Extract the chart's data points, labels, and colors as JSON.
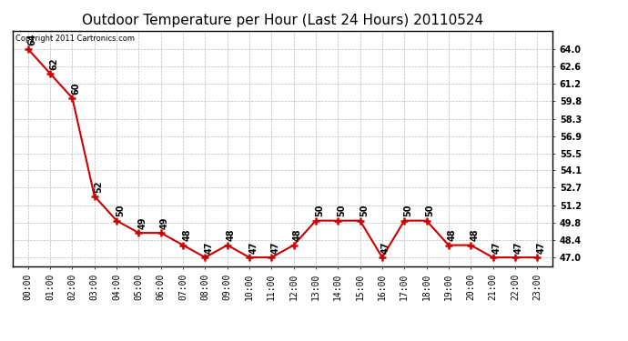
{
  "title": "Outdoor Temperature per Hour (Last 24 Hours) 20110524",
  "copyright_text": "Copyright 2011 Cartronics.com",
  "hours": [
    "00:00",
    "01:00",
    "02:00",
    "03:00",
    "04:00",
    "05:00",
    "06:00",
    "07:00",
    "08:00",
    "09:00",
    "10:00",
    "11:00",
    "12:00",
    "13:00",
    "14:00",
    "15:00",
    "16:00",
    "17:00",
    "18:00",
    "19:00",
    "20:00",
    "21:00",
    "22:00",
    "23:00"
  ],
  "temps": [
    64,
    62,
    60,
    52,
    50,
    49,
    49,
    48,
    47,
    48,
    47,
    47,
    48,
    50,
    50,
    50,
    47,
    50,
    50,
    48,
    48,
    47,
    47,
    47
  ],
  "yticks": [
    47.0,
    48.4,
    49.8,
    51.2,
    52.7,
    54.1,
    55.5,
    56.9,
    58.3,
    59.8,
    61.2,
    62.6,
    64.0
  ],
  "line_color": "#cc0000",
  "marker_color": "#cc0000",
  "bg_color": "#ffffff",
  "grid_color": "#bbbbbb",
  "title_fontsize": 11,
  "label_fontsize": 7,
  "annotation_fontsize": 7
}
